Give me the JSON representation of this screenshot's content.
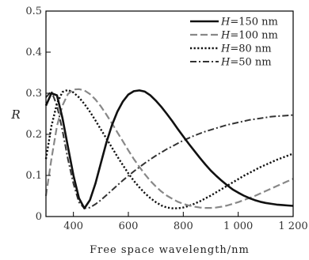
{
  "chart_data": {
    "type": "line",
    "xlabel": "Free space wavelength/nm",
    "ylabel": "R",
    "xlim": [
      300,
      1200
    ],
    "ylim": [
      0,
      0.5
    ],
    "x_ticks": [
      400,
      600,
      800,
      1000,
      1200
    ],
    "x_tick_labels": [
      "400",
      "600",
      "800",
      "1 000",
      "1 200"
    ],
    "y_ticks": [
      0,
      0.1,
      0.2,
      0.3,
      0.4,
      0.5
    ],
    "y_tick_labels": [
      "0",
      "0.1",
      "0.2",
      "0.3",
      "0.4",
      "0.5"
    ],
    "grid": false,
    "legend_position": "top-right",
    "series": [
      {
        "name": "H=150 nm",
        "name_var": "H",
        "name_rest": "=150 nm",
        "style": "solid",
        "x": [
          300,
          320,
          340,
          360,
          380,
          400,
          420,
          440,
          460,
          480,
          500,
          520,
          540,
          560,
          580,
          600,
          620,
          640,
          660,
          680,
          700,
          720,
          740,
          760,
          780,
          800,
          820,
          840,
          860,
          880,
          900,
          920,
          940,
          960,
          980,
          1000,
          1020,
          1040,
          1060,
          1080,
          1100,
          1120,
          1140,
          1160,
          1180,
          1200
        ],
        "y": [
          0.27,
          0.3,
          0.295,
          0.24,
          0.17,
          0.1,
          0.045,
          0.02,
          0.04,
          0.08,
          0.13,
          0.18,
          0.222,
          0.255,
          0.28,
          0.297,
          0.305,
          0.307,
          0.304,
          0.295,
          0.282,
          0.267,
          0.25,
          0.232,
          0.213,
          0.195,
          0.177,
          0.16,
          0.143,
          0.127,
          0.112,
          0.099,
          0.087,
          0.076,
          0.066,
          0.058,
          0.051,
          0.045,
          0.04,
          0.036,
          0.033,
          0.031,
          0.029,
          0.028,
          0.027,
          0.026
        ]
      },
      {
        "name": "H=100 nm",
        "name_var": "H",
        "name_rest": "=100 nm",
        "style": "dashed",
        "x": [
          300,
          320,
          340,
          360,
          380,
          400,
          420,
          440,
          460,
          480,
          500,
          520,
          540,
          560,
          580,
          600,
          620,
          640,
          660,
          680,
          700,
          720,
          740,
          760,
          780,
          800,
          820,
          840,
          860,
          880,
          900,
          920,
          940,
          960,
          980,
          1000,
          1020,
          1040,
          1060,
          1080,
          1100,
          1120,
          1140,
          1160,
          1180,
          1200
        ],
        "y": [
          0.05,
          0.14,
          0.22,
          0.27,
          0.298,
          0.309,
          0.31,
          0.307,
          0.298,
          0.285,
          0.268,
          0.248,
          0.227,
          0.205,
          0.183,
          0.161,
          0.14,
          0.121,
          0.103,
          0.087,
          0.073,
          0.061,
          0.051,
          0.043,
          0.036,
          0.031,
          0.027,
          0.024,
          0.022,
          0.021,
          0.021,
          0.022,
          0.024,
          0.027,
          0.031,
          0.035,
          0.04,
          0.045,
          0.05,
          0.056,
          0.062,
          0.068,
          0.074,
          0.08,
          0.086,
          0.092
        ]
      },
      {
        "name": "H=80 nm",
        "name_var": "H",
        "name_rest": "=80 nm",
        "style": "dotted",
        "x": [
          300,
          320,
          340,
          360,
          380,
          400,
          420,
          440,
          460,
          480,
          500,
          520,
          540,
          560,
          580,
          600,
          620,
          640,
          660,
          680,
          700,
          720,
          740,
          760,
          780,
          800,
          820,
          840,
          860,
          880,
          900,
          920,
          940,
          960,
          980,
          1000,
          1020,
          1040,
          1060,
          1080,
          1100,
          1120,
          1140,
          1160,
          1180,
          1200
        ],
        "y": [
          0.14,
          0.22,
          0.275,
          0.303,
          0.308,
          0.302,
          0.29,
          0.274,
          0.255,
          0.234,
          0.212,
          0.19,
          0.168,
          0.146,
          0.125,
          0.105,
          0.087,
          0.071,
          0.057,
          0.045,
          0.035,
          0.027,
          0.022,
          0.02,
          0.02,
          0.022,
          0.026,
          0.031,
          0.037,
          0.044,
          0.051,
          0.059,
          0.067,
          0.075,
          0.083,
          0.091,
          0.099,
          0.106,
          0.113,
          0.12,
          0.126,
          0.132,
          0.138,
          0.143,
          0.148,
          0.153
        ]
      },
      {
        "name": "H=50 nm",
        "name_var": "H",
        "name_rest": "=50 nm",
        "style": "dashdot",
        "x": [
          300,
          320,
          340,
          360,
          380,
          400,
          420,
          440,
          460,
          480,
          500,
          520,
          540,
          560,
          580,
          600,
          620,
          640,
          660,
          680,
          700,
          720,
          740,
          760,
          780,
          800,
          820,
          840,
          860,
          880,
          900,
          920,
          940,
          960,
          980,
          1000,
          1020,
          1040,
          1060,
          1080,
          1100,
          1120,
          1140,
          1160,
          1180,
          1200
        ],
        "y": [
          0.29,
          0.305,
          0.27,
          0.21,
          0.14,
          0.08,
          0.035,
          0.02,
          0.022,
          0.03,
          0.04,
          0.052,
          0.064,
          0.076,
          0.088,
          0.099,
          0.11,
          0.12,
          0.13,
          0.139,
          0.148,
          0.156,
          0.164,
          0.171,
          0.178,
          0.185,
          0.191,
          0.197,
          0.202,
          0.207,
          0.211,
          0.215,
          0.219,
          0.223,
          0.226,
          0.229,
          0.232,
          0.235,
          0.237,
          0.239,
          0.241,
          0.243,
          0.244,
          0.245,
          0.246,
          0.247
        ]
      }
    ]
  }
}
